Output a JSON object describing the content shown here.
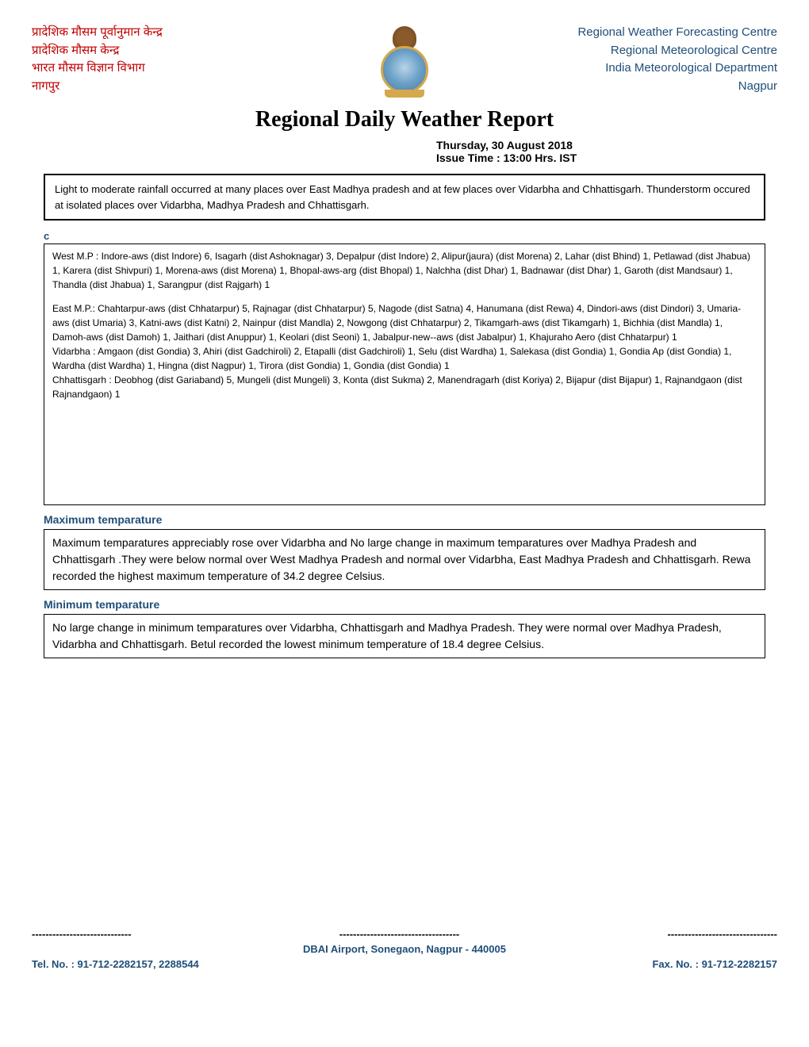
{
  "header": {
    "left": {
      "line1": "प्रादेशिक मौसम पूर्वानुमान केन्द्र",
      "line2": "प्रादेशिक मौसम केन्द्र",
      "line3": "भारत मौसम विज्ञान विभाग",
      "line4": "नागपुर",
      "color": "#c00000",
      "fontsize": 15
    },
    "right": {
      "line1": "Regional Weather Forecasting Centre",
      "line2": "Regional Meteorological Centre",
      "line3": "India Meteorological Department",
      "line4": "Nagpur",
      "color": "#1f4e79",
      "fontsize": 15
    }
  },
  "title": "Regional Daily Weather Report",
  "date": "Thursday, 30 August 2018",
  "issue_time": "Issue Time : 13:00 Hrs. IST",
  "summary_box": "Light to moderate rainfall occurred at many places over East Madhya pradesh and at few places over Vidarbha and Chhattisgarh. Thunderstorm occured at isolated places over Vidarbha, Madhya Pradesh and Chhattisgarh.",
  "c_mark": "c",
  "rainfall_box": {
    "para1": "West M.P :  Indore-aws (dist Indore) 6, Isagarh (dist Ashoknagar) 3, Depalpur (dist Indore) 2, Alipur(jaura) (dist Morena) 2, Lahar (dist Bhind) 1, Petlawad (dist Jhabua) 1, Karera (dist Shivpuri) 1, Morena-aws (dist Morena) 1, Bhopal-aws-arg (dist Bhopal) 1, Nalchha (dist Dhar) 1, Badnawar (dist Dhar) 1, Garoth (dist Mandsaur) 1, Thandla (dist Jhabua) 1, Sarangpur (dist Rajgarh) 1",
    "para2": " East M.P.: Chahtarpur-aws (dist Chhatarpur) 5, Rajnagar (dist Chhatarpur) 5, Nagode (dist Satna) 4, Hanumana (dist Rewa) 4, Dindori-aws (dist Dindori) 3, Umaria-aws (dist Umaria) 3, Katni-aws (dist Katni) 2, Nainpur (dist Mandla) 2, Nowgong (dist Chhatarpur) 2, Tikamgarh-aws (dist Tikamgarh) 1, Bichhia (dist Mandla) 1, Damoh-aws (dist Damoh) 1, Jaithari (dist Anuppur) 1, Keolari (dist Seoni) 1, Jabalpur-new--aws (dist Jabalpur) 1, Khajuraho Aero (dist Chhatarpur) 1",
    "para3": "Vidarbha : Amgaon (dist Gondia) 3, Ahiri (dist Gadchiroli) 2, Etapalli (dist Gadchiroli) 1, Selu (dist Wardha) 1, Salekasa (dist Gondia) 1, Gondia Ap (dist Gondia) 1, Wardha (dist Wardha) 1, Hingna (dist Nagpur) 1, Tirora (dist Gondia) 1, Gondia (dist Gondia) 1",
    "para4": "Chhattisgarh : Deobhog (dist Gariaband) 5, Mungeli (dist Mungeli) 3, Konta (dist Sukma) 2, Manendragarh (dist Koriya) 2, Bijapur (dist Bijapur) 1, Rajnandgaon (dist Rajnandgaon) 1"
  },
  "max_temp_label": "Maximum temparature",
  "max_temp_box": "Maximum temparatures appreciably rose over Vidarbha and No large change in maximum temparatures over  Madhya Pradesh  and Chhattisgarh .They were below normal over West Madhya Pradesh and normal over Vidarbha, East Madhya Pradesh and Chhattisgarh. Rewa recorded the highest maximum temperature of 34.2 degree Celsius.",
  "min_temp_label": "Minimum temparature",
  "min_temp_box": "No large change in minimum temparatures over Vidarbha, Chhattisgarh and Madhya Pradesh. They were normal over Madhya Pradesh, Vidarbha and Chhattisgarh. Betul  recorded the lowest minimum temperature of 18.4 degree Celsius.",
  "footer": {
    "dash1": "-----------------------------",
    "dash2": "-----------------------------------",
    "dash3": "--------------------------------",
    "address": "DBAI Airport, Sonegaon, Nagpur - 440005",
    "tel": "Tel. No.   : 91-712-2282157, 2288544",
    "fax": "Fax. No.  : 91-712-2282157"
  },
  "colors": {
    "red": "#c00000",
    "blue": "#1f4e79",
    "black": "#000000",
    "background": "#ffffff"
  }
}
